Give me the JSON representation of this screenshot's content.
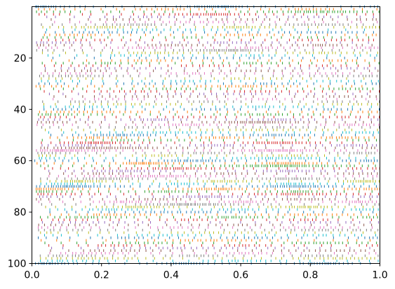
{
  "chart_data": {
    "type": "eventplot",
    "title": "",
    "xlabel": "",
    "ylabel": "",
    "xlim": [
      0.0,
      1.0
    ],
    "ylim": [
      100,
      0
    ],
    "y_inverted": true,
    "grid": false,
    "legend": "none",
    "num_rows": 101,
    "x_ticks": [
      0.0,
      0.2,
      0.4,
      0.6,
      0.8,
      1.0
    ],
    "x_tick_labels": [
      "0.0",
      "0.2",
      "0.4",
      "0.6",
      "0.8",
      "1.0"
    ],
    "y_ticks": [
      20,
      40,
      60,
      80,
      100
    ],
    "y_tick_labels": [
      "20",
      "40",
      "60",
      "80",
      "100"
    ],
    "color_cycle": [
      "#1f77b4",
      "#ff7f0e",
      "#2ca02c",
      "#d62728",
      "#9467bd",
      "#8c564b",
      "#e377c2",
      "#7f7f7f",
      "#bcbd22",
      "#17becf"
    ],
    "row_event_density": [
      0.95,
      0.7,
      0.8,
      0.9,
      0.45,
      0.5,
      0.55,
      0.75,
      0.85,
      0.4,
      0.6,
      0.65,
      0.35,
      0.45,
      0.6,
      0.7,
      0.8,
      0.95,
      0.65,
      0.5,
      0.4,
      0.55,
      0.6,
      0.45,
      0.5,
      0.5,
      0.55,
      0.65,
      0.4,
      0.45,
      0.5,
      0.75,
      0.55,
      0.6,
      0.45,
      0.4,
      0.45,
      0.5,
      0.55,
      0.6,
      0.5,
      0.65,
      0.7,
      0.45,
      0.8,
      0.9,
      0.75,
      0.55,
      0.6,
      0.7,
      0.85,
      0.8,
      0.55,
      0.9,
      0.75,
      0.9,
      0.95,
      0.7,
      0.65,
      0.8,
      0.85,
      0.95,
      0.9,
      0.85,
      0.8,
      0.6,
      0.9,
      0.85,
      0.9,
      0.8,
      0.95,
      0.9,
      0.85,
      0.8,
      0.9,
      0.7,
      0.85,
      0.95,
      0.9,
      0.75,
      0.6,
      0.7,
      0.8,
      0.55,
      0.45,
      0.5,
      0.55,
      0.6,
      0.6,
      0.55,
      0.5,
      0.6,
      0.6,
      0.55,
      0.55,
      0.5,
      0.65,
      0.7,
      0.7,
      0.65,
      0.9
    ]
  }
}
